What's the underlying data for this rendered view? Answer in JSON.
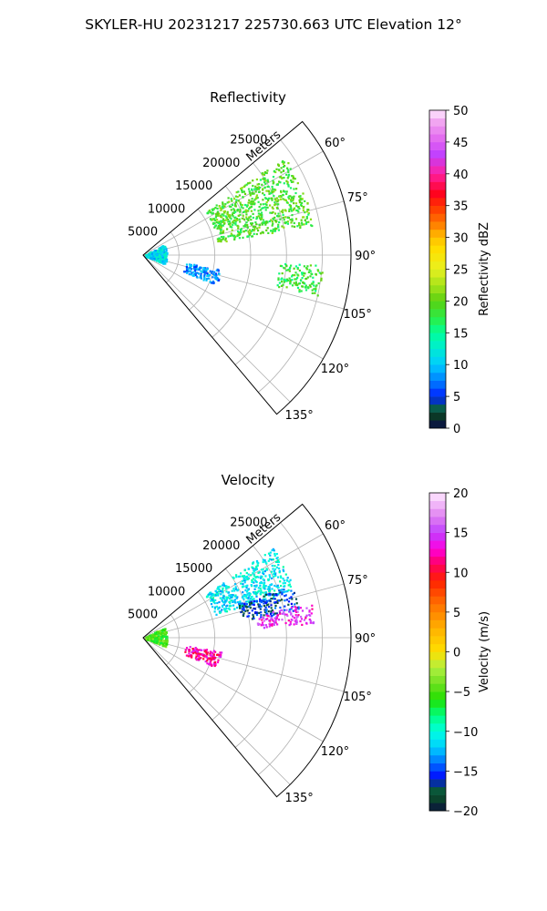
{
  "suptitle": "SKYLER-HU  20231217  225730.663 UTC Elevation 12°",
  "chart_data": [
    {
      "type": "polar-sector",
      "title": "Reflectivity",
      "radial_axis_label": "Meters",
      "radial_ticks": [
        5000,
        10000,
        15000,
        20000,
        25000
      ],
      "radial_tick_labels": [
        "5000",
        "10000",
        "15000",
        "20000",
        "25000"
      ],
      "rlim": [
        0,
        29000
      ],
      "angle_range_deg": [
        50,
        140
      ],
      "angle_ticks": [
        60,
        75,
        90,
        105,
        120,
        135
      ],
      "angle_tick_labels": [
        "60°",
        "75°",
        "90°",
        "105°",
        "120°",
        "135°"
      ],
      "grid": true,
      "colorbar": {
        "label": "Reflectivity dBZ",
        "range": [
          0,
          50
        ],
        "ticks": [
          0,
          5,
          10,
          15,
          20,
          25,
          30,
          35,
          40,
          45,
          50
        ],
        "tick_labels": [
          "0",
          "5",
          "10",
          "15",
          "20",
          "25",
          "30",
          "35",
          "40",
          "45",
          "50"
        ]
      },
      "echo_regions": [
        {
          "az": [
            55,
            80
          ],
          "range": [
            10500,
            24000
          ],
          "value": 19
        },
        {
          "az": [
            100,
            112
          ],
          "range": [
            6000,
            11000
          ],
          "value": 8
        },
        {
          "az": [
            62,
            112
          ],
          "range": [
            300,
            3300
          ],
          "value": 11
        },
        {
          "az": [
            93,
            103
          ],
          "range": [
            19000,
            25000
          ],
          "value": 18
        }
      ]
    },
    {
      "type": "polar-sector",
      "title": "Velocity",
      "radial_axis_label": "Meters",
      "radial_ticks": [
        5000,
        10000,
        15000,
        20000,
        25000
      ],
      "radial_tick_labels": [
        "5000",
        "10000",
        "15000",
        "20000",
        "25000"
      ],
      "rlim": [
        0,
        29000
      ],
      "angle_range_deg": [
        50,
        140
      ],
      "angle_ticks": [
        60,
        75,
        90,
        105,
        120,
        135
      ],
      "angle_tick_labels": [
        "60°",
        "75°",
        "90°",
        "105°",
        "120°",
        "135°"
      ],
      "grid": true,
      "colorbar": {
        "label": "Velocity (m/s)",
        "range": [
          -20,
          20
        ],
        "ticks": [
          -20,
          -15,
          -10,
          -5,
          0,
          5,
          10,
          15,
          20
        ],
        "tick_labels": [
          "−20",
          "−15",
          "−10",
          "−5",
          "0",
          "5",
          "10",
          "15",
          "20"
        ]
      },
      "echo_regions": [
        {
          "az": [
            55,
            72
          ],
          "range": [
            10500,
            22000
          ],
          "value": -11
        },
        {
          "az": [
            70,
            80
          ],
          "range": [
            14000,
            22000
          ],
          "value": -16
        },
        {
          "az": [
            78,
            85
          ],
          "range": [
            16000,
            24000
          ],
          "value": 14
        },
        {
          "az": [
            100,
            112
          ],
          "range": [
            6000,
            11000
          ],
          "value": 12
        },
        {
          "az": [
            62,
            112
          ],
          "range": [
            300,
            3300
          ],
          "value": -5
        }
      ]
    }
  ],
  "colors": {
    "reflectivity_stops": [
      [
        0,
        "#0a0a4a"
      ],
      [
        2,
        "#0b3a25"
      ],
      [
        3,
        "#0a6040"
      ],
      [
        5,
        "#0020ff"
      ],
      [
        7,
        "#0070ff"
      ],
      [
        10,
        "#00ccff"
      ],
      [
        13,
        "#00f0c8"
      ],
      [
        15,
        "#00ff9a"
      ],
      [
        17,
        "#25f050"
      ],
      [
        20,
        "#5ad010"
      ],
      [
        22,
        "#9ae018"
      ],
      [
        25,
        "#e8f020"
      ],
      [
        28,
        "#ffe000"
      ],
      [
        30,
        "#ffc000"
      ],
      [
        32,
        "#ff8000"
      ],
      [
        35,
        "#ff3000"
      ],
      [
        37,
        "#ff0020"
      ],
      [
        40,
        "#ff20a0"
      ],
      [
        43,
        "#c040ff"
      ],
      [
        45,
        "#e060f0"
      ],
      [
        48,
        "#f0a0f0"
      ],
      [
        50,
        "#ffe8ff"
      ]
    ],
    "velocity_stops": [
      [
        -20,
        "#0a0a4a"
      ],
      [
        -19,
        "#0b3a25"
      ],
      [
        -17,
        "#0a6040"
      ],
      [
        -16,
        "#0000ff"
      ],
      [
        -14,
        "#0070ff"
      ],
      [
        -12,
        "#00d0ff"
      ],
      [
        -10,
        "#00ffe0"
      ],
      [
        -8,
        "#00ff80"
      ],
      [
        -6,
        "#20e000"
      ],
      [
        -4,
        "#70e020"
      ],
      [
        -2,
        "#b0f040"
      ],
      [
        0,
        "#ffe000"
      ],
      [
        3,
        "#ffb000"
      ],
      [
        6,
        "#ff7000"
      ],
      [
        9,
        "#ff2000"
      ],
      [
        11,
        "#ff0060"
      ],
      [
        13,
        "#ff00e0"
      ],
      [
        15,
        "#c040ff"
      ],
      [
        17,
        "#e080f0"
      ],
      [
        20,
        "#ffe8ff"
      ]
    ]
  }
}
